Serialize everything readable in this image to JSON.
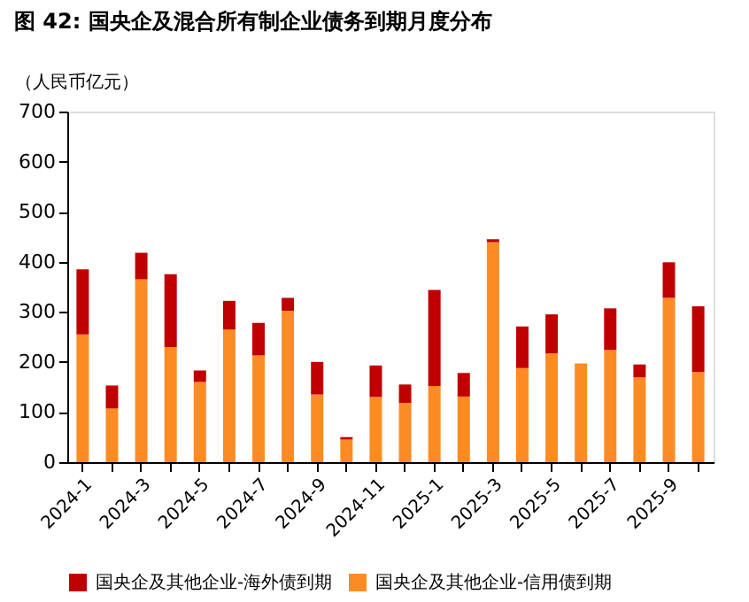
{
  "chart_data": {
    "type": "bar",
    "stacked": true,
    "title": "图 42: 国央企及混合所有制企业债务到期月度分布",
    "ylabel": "（人民币亿元）",
    "categories": [
      "2024-1",
      null,
      "2024-3",
      null,
      "2024-5",
      null,
      "2024-7",
      null,
      "2024-9",
      null,
      "2024-11",
      null,
      "2025-1",
      null,
      "2025-3",
      null,
      "2025-5",
      null,
      "2025-7",
      null,
      "2025-9",
      null
    ],
    "series": [
      {
        "name": "国央企及其他企业-信用债到期",
        "color": "#fb8c24",
        "values": [
          255,
          107,
          365,
          230,
          160,
          265,
          213,
          302,
          135,
          45,
          130,
          118,
          152,
          131,
          439,
          188,
          217,
          197,
          224,
          169,
          328,
          180
        ]
      },
      {
        "name": "国央企及其他企业-海外债到期",
        "color": "#c00000",
        "values": [
          130,
          46,
          53,
          145,
          23,
          57,
          65,
          26,
          65,
          5,
          63,
          37,
          192,
          47,
          6,
          83,
          78,
          0,
          83,
          26,
          71,
          131
        ]
      }
    ],
    "ylim": [
      0,
      700
    ],
    "yticks": [
      0,
      100,
      200,
      300,
      400,
      500,
      600,
      700
    ],
    "grid": false,
    "legend": "bottom"
  }
}
